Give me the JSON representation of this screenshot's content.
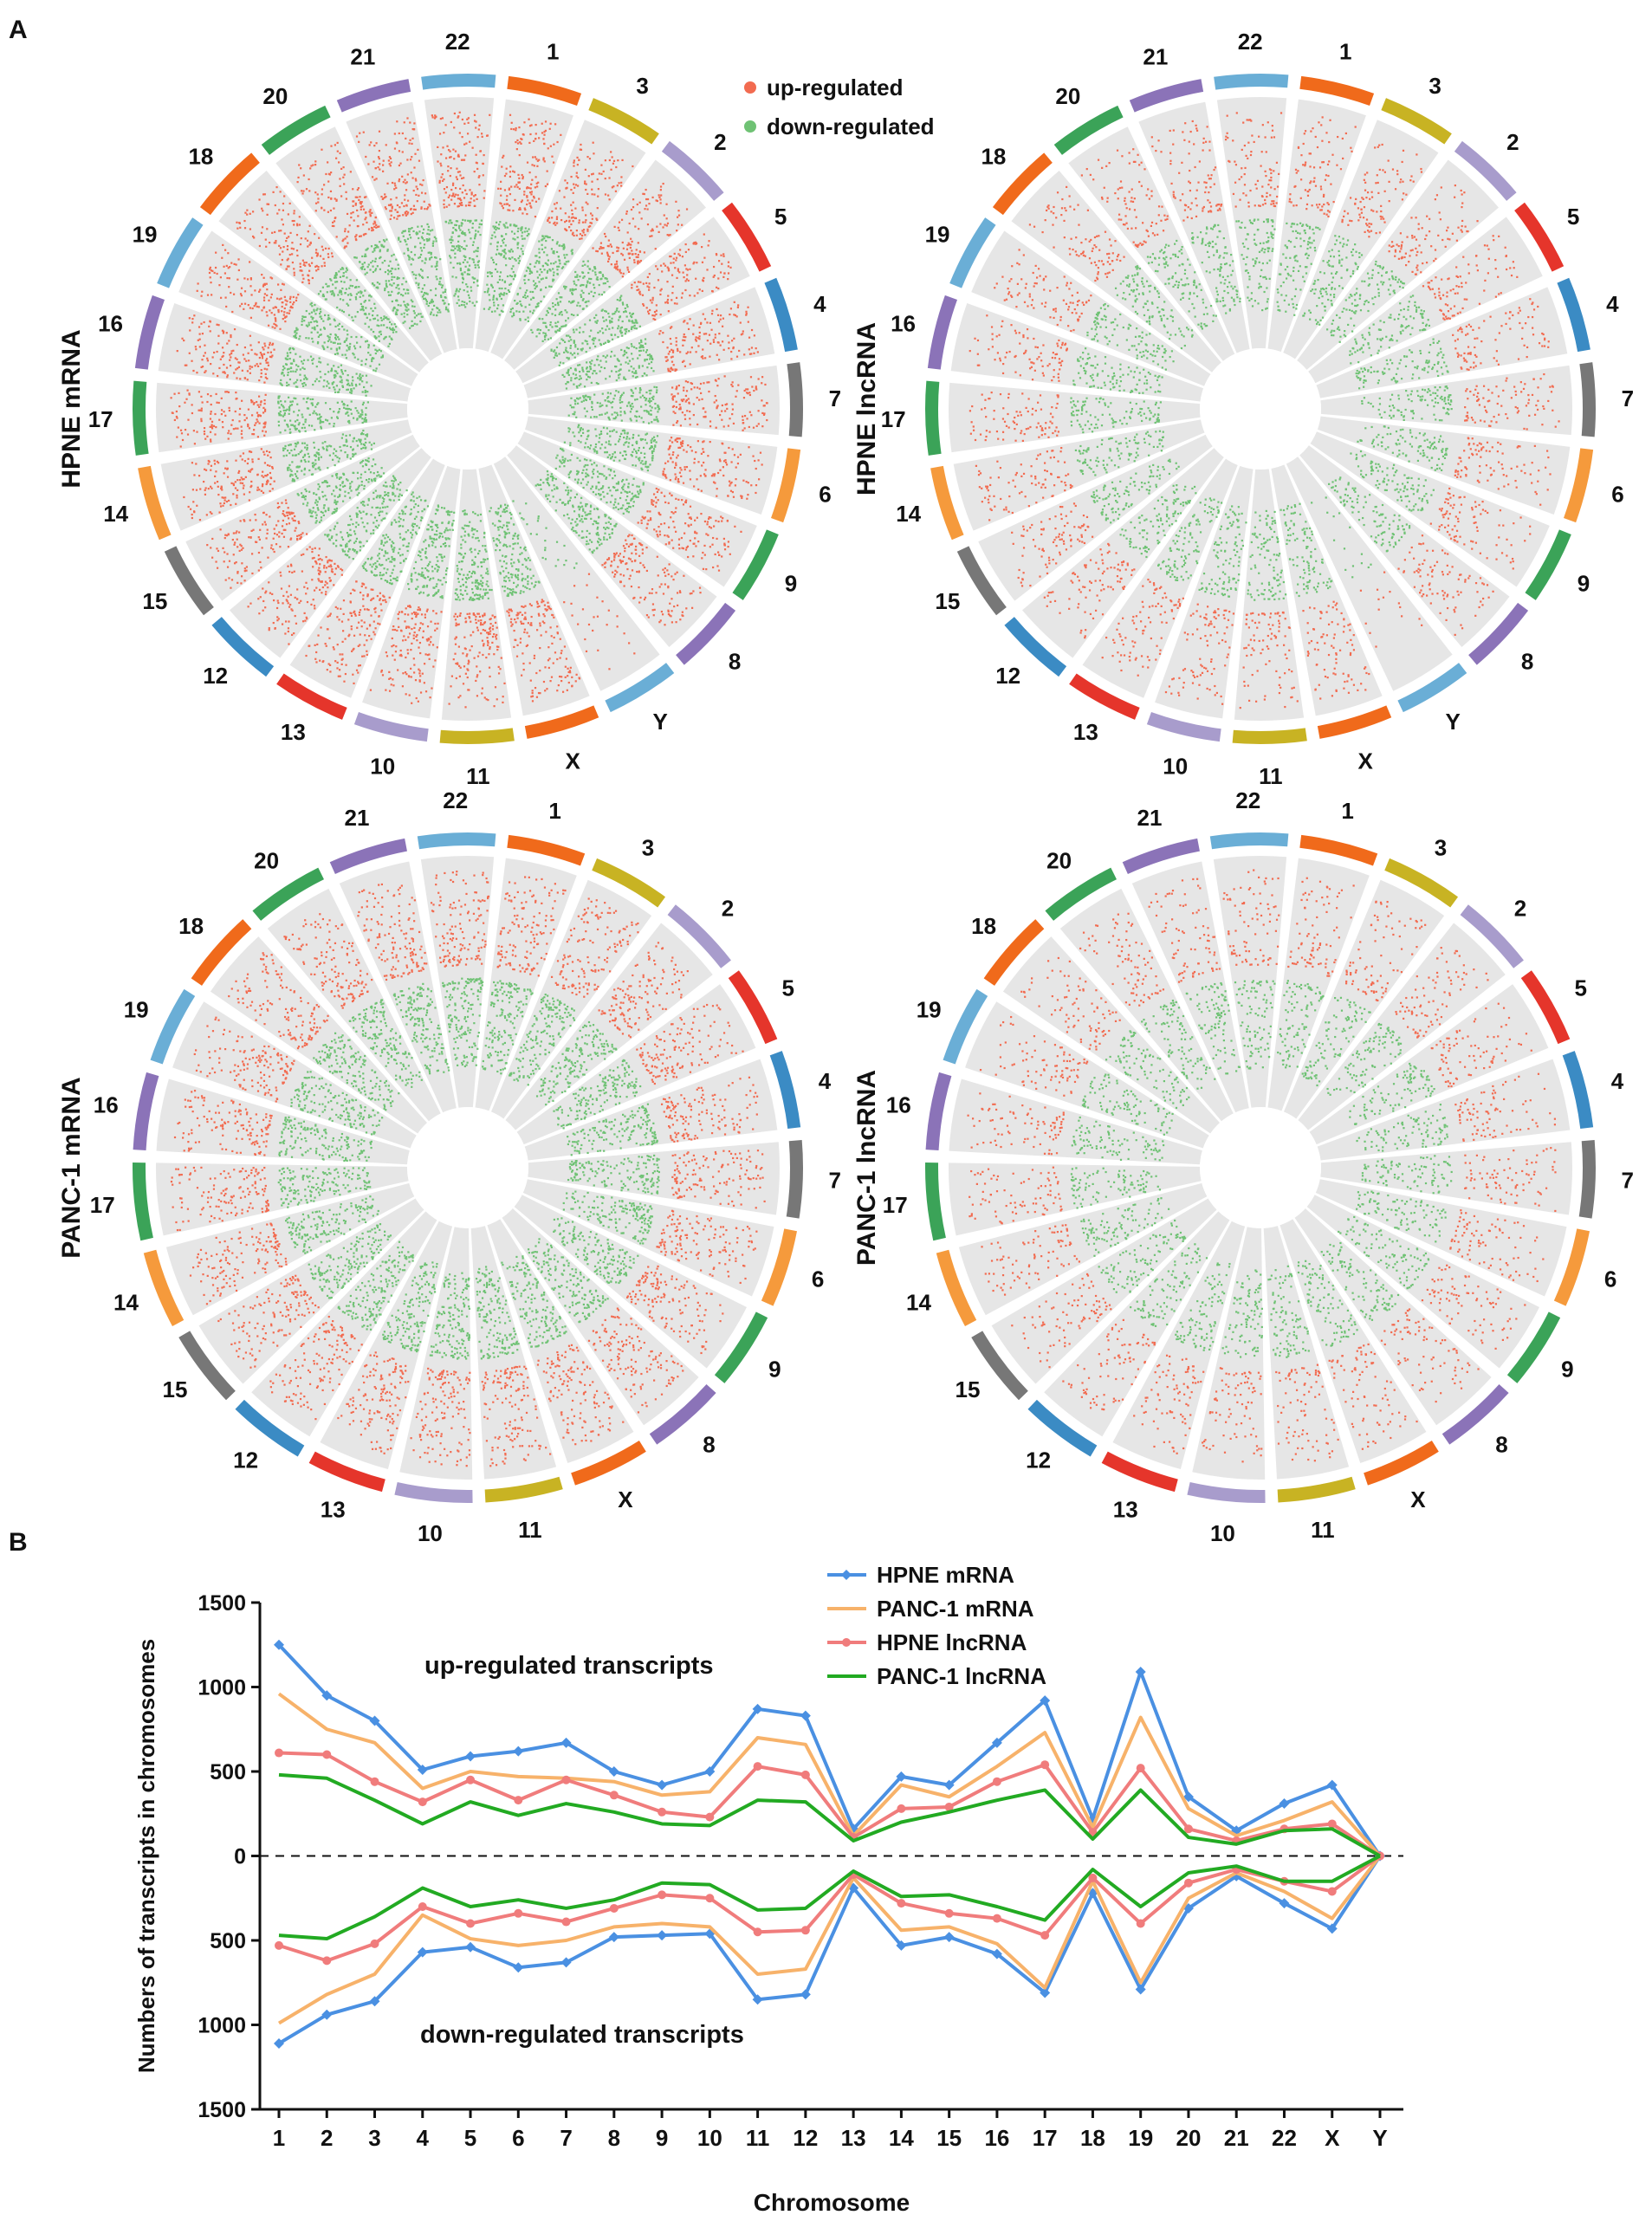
{
  "panel_labels": {
    "a": "A",
    "b": "B"
  },
  "legend_a": {
    "up": "up-regulated",
    "down": "down-regulated",
    "up_color": "#f26b50",
    "down_color": "#6fc274"
  },
  "chromosome_colors": {
    "1": "#f06a1b",
    "2": "#a89ccc",
    "3": "#c8b323",
    "4": "#3b8bc4",
    "5": "#e5352b",
    "6": "#f59a3c",
    "7": "#777777",
    "8": "#8b73b8",
    "9": "#3ba358",
    "10": "#a89ccc",
    "11": "#c8b323",
    "12": "#3b8bc4",
    "13": "#e5352b",
    "14": "#f59a3c",
    "15": "#777777",
    "16": "#8b73b8",
    "17": "#3ba358",
    "18": "#f06a1b",
    "19": "#6aaed6",
    "20": "#3ba358",
    "21": "#8b73b8",
    "22": "#6aaed6",
    "X": "#f06a1b",
    "Y": "#6aaed6"
  },
  "circos": [
    {
      "title": "HPNE mRNA",
      "chromosomes": [
        "1",
        "3",
        "2",
        "5",
        "4",
        "7",
        "6",
        "9",
        "8",
        "Y",
        "X",
        "11",
        "10",
        "13",
        "12",
        "15",
        "14",
        "17",
        "16",
        "19",
        "18",
        "20",
        "21",
        "22"
      ],
      "intensity": 1.0
    },
    {
      "title": "HPNE lncRNA",
      "chromosomes": [
        "1",
        "3",
        "2",
        "5",
        "4",
        "7",
        "6",
        "9",
        "8",
        "Y",
        "X",
        "11",
        "10",
        "13",
        "12",
        "15",
        "14",
        "17",
        "16",
        "19",
        "18",
        "20",
        "21",
        "22"
      ],
      "intensity": 0.6
    },
    {
      "title": "PANC-1 mRNA",
      "chromosomes": [
        "1",
        "3",
        "2",
        "5",
        "4",
        "7",
        "6",
        "9",
        "8",
        "X",
        "11",
        "10",
        "13",
        "12",
        "15",
        "14",
        "17",
        "16",
        "19",
        "18",
        "20",
        "21",
        "22"
      ],
      "intensity": 0.9
    },
    {
      "title": "PANC-1 lncRNA",
      "chromosomes": [
        "1",
        "3",
        "2",
        "5",
        "4",
        "7",
        "6",
        "9",
        "8",
        "X",
        "11",
        "10",
        "13",
        "12",
        "15",
        "14",
        "17",
        "16",
        "19",
        "18",
        "20",
        "21",
        "22"
      ],
      "intensity": 0.55
    }
  ],
  "chart_data": {
    "type": "line",
    "title": "",
    "xlabel": "Chromosome",
    "ylabel": "Numbers of transcripts in chromosomes",
    "ylim": [
      -1500,
      1500
    ],
    "y_ticks": [
      1500,
      1000,
      500,
      0,
      500,
      1000,
      1500
    ],
    "categories": [
      "1",
      "2",
      "3",
      "4",
      "5",
      "6",
      "7",
      "8",
      "9",
      "10",
      "11",
      "12",
      "13",
      "14",
      "15",
      "16",
      "17",
      "18",
      "19",
      "20",
      "21",
      "22",
      "X",
      "Y"
    ],
    "annotations": {
      "up": "up-regulated transcripts",
      "down": "down-regulated transcripts"
    },
    "series": [
      {
        "name": "HPNE mRNA",
        "color": "#4a90e2",
        "marker": "diamond",
        "up": [
          1250,
          950,
          800,
          510,
          590,
          620,
          670,
          500,
          420,
          500,
          870,
          830,
          160,
          470,
          420,
          670,
          920,
          220,
          1090,
          350,
          150,
          310,
          420,
          0
        ],
        "down": [
          1110,
          940,
          860,
          570,
          540,
          660,
          630,
          480,
          470,
          460,
          850,
          820,
          190,
          530,
          480,
          580,
          810,
          220,
          790,
          310,
          120,
          280,
          430,
          0
        ]
      },
      {
        "name": "PANC-1 mRNA",
        "color": "#f7b26a",
        "marker": "none",
        "up": [
          960,
          750,
          670,
          400,
          500,
          470,
          460,
          440,
          360,
          380,
          700,
          660,
          120,
          420,
          350,
          530,
          730,
          170,
          820,
          280,
          120,
          210,
          320,
          0
        ],
        "down": [
          990,
          820,
          700,
          350,
          490,
          530,
          500,
          420,
          400,
          420,
          700,
          670,
          130,
          440,
          420,
          520,
          780,
          150,
          750,
          250,
          100,
          210,
          370,
          0
        ]
      },
      {
        "name": "HPNE lncRNA",
        "color": "#f07c7c",
        "marker": "circle",
        "up": [
          610,
          600,
          440,
          320,
          450,
          330,
          450,
          360,
          260,
          230,
          530,
          480,
          110,
          280,
          290,
          440,
          540,
          140,
          520,
          160,
          90,
          160,
          190,
          0
        ],
        "down": [
          530,
          620,
          520,
          300,
          400,
          340,
          390,
          310,
          230,
          250,
          450,
          440,
          110,
          280,
          340,
          370,
          470,
          130,
          400,
          160,
          80,
          150,
          210,
          0
        ]
      },
      {
        "name": "PANC-1 lncRNA",
        "color": "#22aa22",
        "marker": "none",
        "up": [
          480,
          460,
          330,
          190,
          320,
          240,
          310,
          260,
          190,
          180,
          330,
          320,
          90,
          200,
          260,
          330,
          390,
          100,
          390,
          110,
          70,
          150,
          160,
          0
        ],
        "down": [
          470,
          490,
          360,
          190,
          300,
          260,
          310,
          260,
          160,
          170,
          320,
          310,
          90,
          240,
          230,
          300,
          380,
          80,
          300,
          100,
          60,
          150,
          150,
          0
        ]
      }
    ]
  }
}
